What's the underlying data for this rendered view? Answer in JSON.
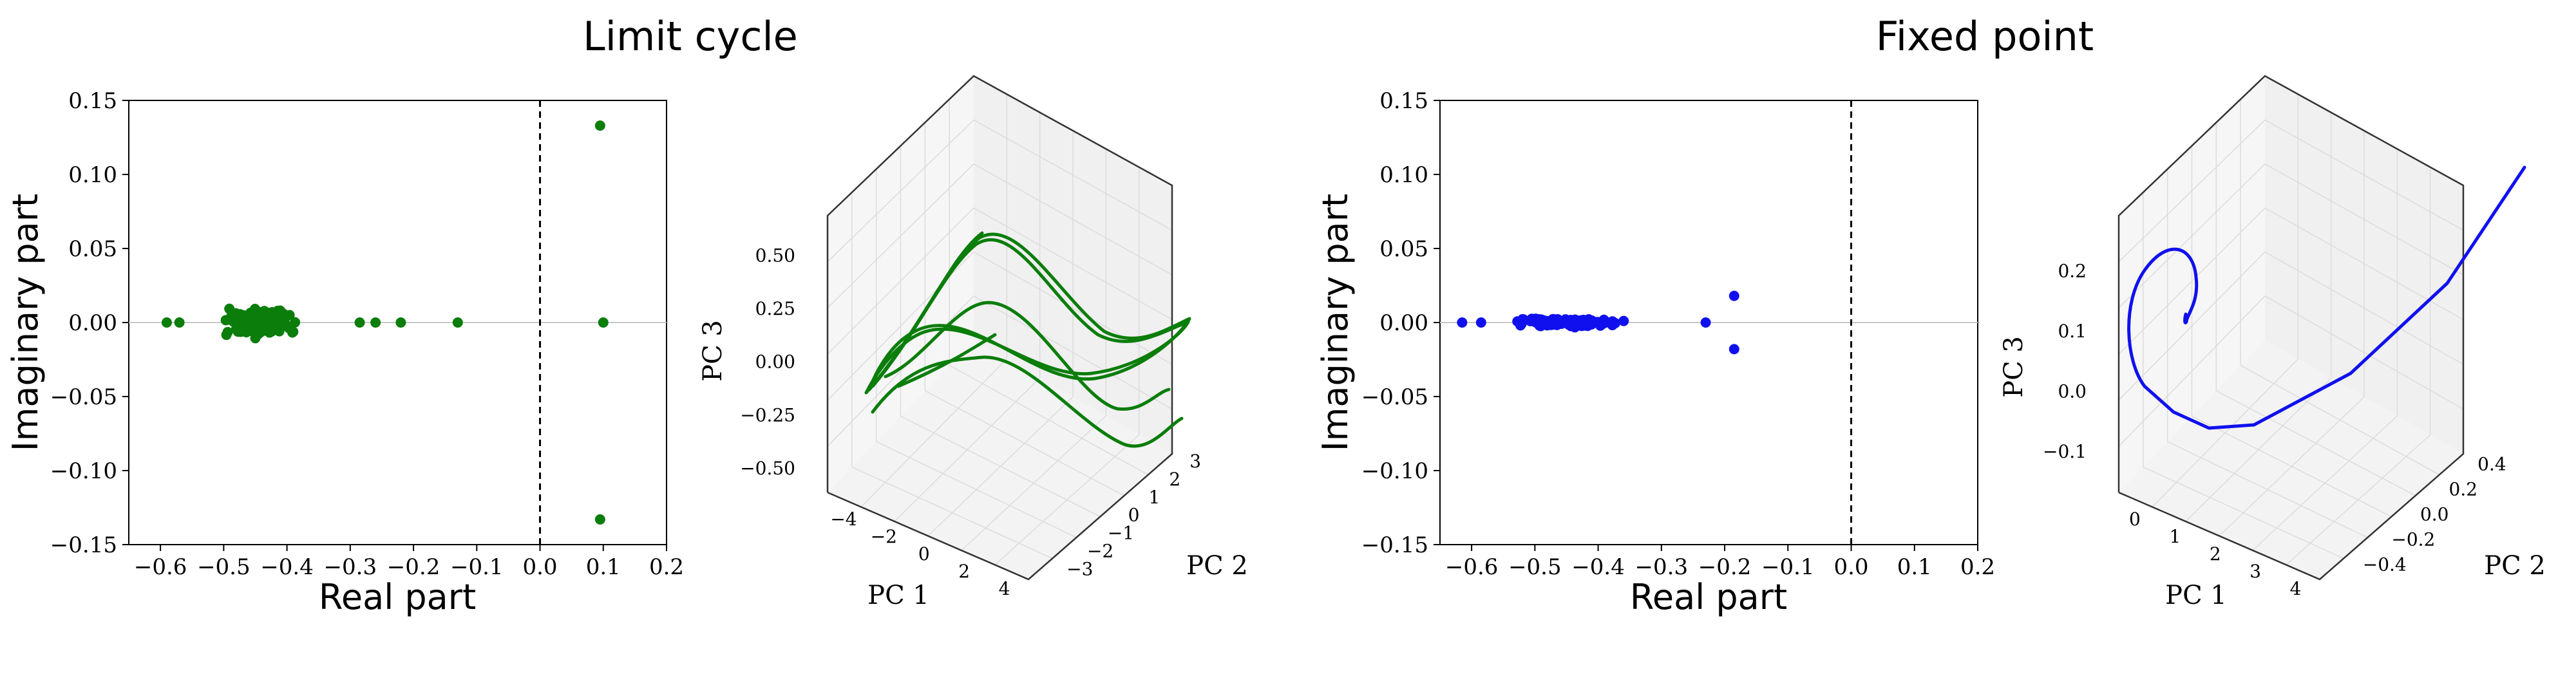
{
  "titles": {
    "left": "Limit cycle",
    "right": "Fixed point"
  },
  "colors": {
    "green": "#0a7d0a",
    "blue": "#1010ee",
    "axis": "#000000",
    "zero_line": "#c8c8c8",
    "pane_grid": "#dcdcdc",
    "pane_edge": "#333333"
  },
  "chart_data": [
    {
      "id": "limit-cycle-eigenvalues",
      "type": "scatter",
      "xlabel": "Real part",
      "ylabel": "Imaginary part",
      "xlim": [
        -0.65,
        0.2
      ],
      "ylim": [
        -0.15,
        0.15
      ],
      "xticks": [
        "−0.6",
        "−0.5",
        "−0.4",
        "−0.3",
        "−0.2",
        "−0.1",
        "0.0",
        "0.1",
        "0.2"
      ],
      "xtick_values": [
        -0.6,
        -0.5,
        -0.4,
        -0.3,
        -0.2,
        -0.1,
        0.0,
        0.1,
        0.2
      ],
      "yticks": [
        "−0.15",
        "−0.10",
        "−0.05",
        "0.00",
        "0.05",
        "0.10",
        "0.15"
      ],
      "ytick_values": [
        -0.15,
        -0.1,
        -0.05,
        0.0,
        0.05,
        0.1,
        0.15
      ],
      "vline_x": 0.0,
      "hline_y": 0.0,
      "color": "green",
      "outliers": [
        [
          0.095,
          0.133
        ],
        [
          0.1,
          0.0
        ],
        [
          0.095,
          -0.133
        ],
        [
          -0.13,
          0.0
        ],
        [
          -0.22,
          0.0
        ],
        [
          -0.26,
          0.0
        ],
        [
          -0.285,
          0.0
        ],
        [
          -0.59,
          0.0
        ],
        [
          -0.57,
          0.0
        ]
      ],
      "cluster": {
        "x_center": -0.44,
        "x_spread": 0.16,
        "y_spread": 0.013,
        "count": 140
      }
    },
    {
      "id": "limit-cycle-trajectory",
      "type": "line",
      "projection": "3d",
      "xlabel": "PC 1",
      "ylabel": "PC 2",
      "zlabel": "PC 3",
      "xticks": [
        "−4",
        "−2",
        "0",
        "2",
        "4"
      ],
      "yticks": [
        "3",
        "2",
        "1",
        "0",
        "−1",
        "−2",
        "−3"
      ],
      "zticks": [
        "0.50",
        "0.25",
        "0.00",
        "−0.25",
        "−0.50"
      ],
      "color": "green"
    },
    {
      "id": "fixed-point-eigenvalues",
      "type": "scatter",
      "xlabel": "Real part",
      "ylabel": "Imaginary part",
      "xlim": [
        -0.65,
        0.2
      ],
      "ylim": [
        -0.15,
        0.15
      ],
      "xticks": [
        "−0.6",
        "−0.5",
        "−0.4",
        "−0.3",
        "−0.2",
        "−0.1",
        "0.0",
        "0.1",
        "0.2"
      ],
      "xtick_values": [
        -0.6,
        -0.5,
        -0.4,
        -0.3,
        -0.2,
        -0.1,
        0.0,
        0.1,
        0.2
      ],
      "yticks": [
        "−0.15",
        "−0.10",
        "−0.05",
        "0.00",
        "0.05",
        "0.10",
        "0.15"
      ],
      "ytick_values": [
        -0.15,
        -0.1,
        -0.05,
        0.0,
        0.05,
        0.1,
        0.15
      ],
      "vline_x": 0.0,
      "hline_y": 0.0,
      "color": "blue",
      "outliers": [
        [
          -0.185,
          0.018
        ],
        [
          -0.185,
          -0.018
        ],
        [
          -0.23,
          0.0
        ],
        [
          -0.615,
          0.0
        ],
        [
          -0.585,
          0.0
        ]
      ],
      "cluster": {
        "x_center": -0.45,
        "x_spread": 0.26,
        "y_spread": 0.004,
        "count": 160
      }
    },
    {
      "id": "fixed-point-trajectory",
      "type": "line",
      "projection": "3d",
      "xlabel": "PC 1",
      "ylabel": "PC 2",
      "zlabel": "PC 3",
      "xticks": [
        "0",
        "1",
        "2",
        "3",
        "4"
      ],
      "yticks": [
        "0.4",
        "0.2",
        "0.0",
        "−0.2",
        "−0.4"
      ],
      "zticks": [
        "0.2",
        "0.1",
        "0.0",
        "−0.1"
      ],
      "color": "blue"
    }
  ]
}
